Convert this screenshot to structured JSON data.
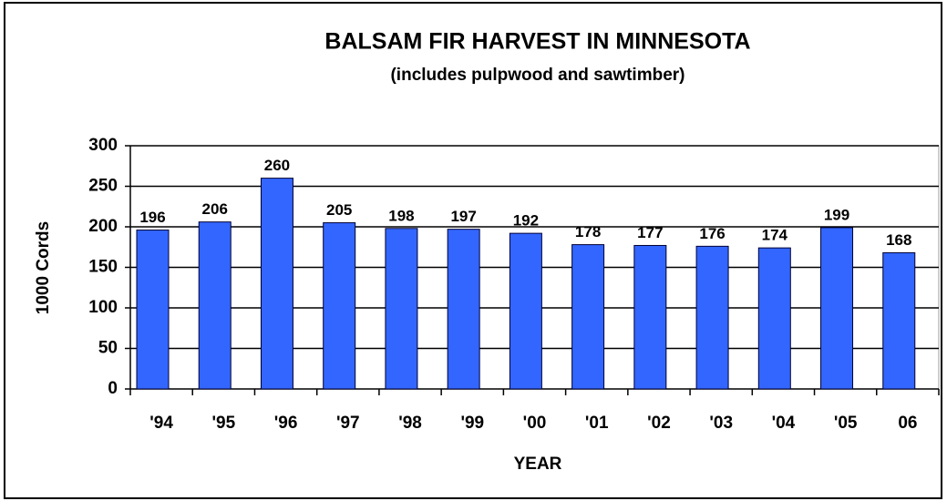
{
  "chart_data": {
    "type": "bar",
    "title": "BALSAM FIR HARVEST IN MINNESOTA",
    "subtitle": "(includes pulpwood and sawtimber)",
    "x_label": "YEAR",
    "y_label": "1000 Cords",
    "categories": [
      "'94",
      "'95",
      "'96",
      "'97",
      "'98",
      "'99",
      "'00",
      "'01",
      "'02",
      "'03",
      "'04",
      "'05",
      "06"
    ],
    "values": [
      196,
      206,
      260,
      205,
      198,
      197,
      192,
      178,
      177,
      176,
      174,
      199,
      168
    ],
    "color": "#3366ff",
    "ylim": [
      0,
      300
    ],
    "yticks": [
      0,
      50,
      100,
      150,
      200,
      250,
      300
    ],
    "grid": true
  }
}
